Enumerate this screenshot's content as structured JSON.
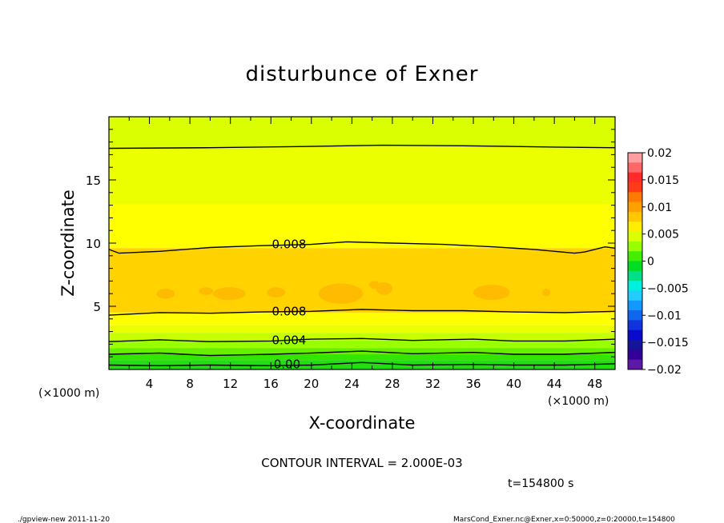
{
  "chart_data": {
    "type": "heatmap",
    "title": "disturbunce of Exner",
    "xlabel": "X-coordinate",
    "ylabel": "Z-coordinate",
    "x_unit": "(×1000 m)",
    "z_unit": "(×1000 m)",
    "xlim": [
      0,
      50
    ],
    "ylim": [
      0,
      20
    ],
    "x_ticks": [
      4,
      8,
      12,
      16,
      20,
      24,
      28,
      32,
      36,
      40,
      44,
      48
    ],
    "y_ticks": [
      5,
      10,
      15
    ],
    "contour_interval_text": "CONTOUR INTERVAL = 2.000E-03",
    "contour_labels": [
      {
        "text": "0.008",
        "x": 17.8,
        "z": 9.9
      },
      {
        "text": "0.008",
        "x": 17.8,
        "z": 4.6
      },
      {
        "text": "0.004",
        "x": 17.8,
        "z": 2.3
      },
      {
        "text": "0.00",
        "x": 17.6,
        "z": 0.4
      }
    ],
    "contours": [
      {
        "level": 0.002,
        "points": [
          [
            0,
            0.35
          ],
          [
            5,
            0.3
          ],
          [
            10,
            0.35
          ],
          [
            16,
            0.3
          ],
          [
            20,
            0.35
          ],
          [
            25,
            0.55
          ],
          [
            30,
            0.35
          ],
          [
            36,
            0.4
          ],
          [
            40,
            0.35
          ],
          [
            45,
            0.35
          ],
          [
            50,
            0.45
          ]
        ]
      },
      {
        "level": 0.004,
        "points": [
          [
            0,
            1.2
          ],
          [
            5,
            1.3
          ],
          [
            10,
            1.1
          ],
          [
            16,
            1.2
          ],
          [
            20,
            1.3
          ],
          [
            25,
            1.45
          ],
          [
            30,
            1.25
          ],
          [
            36,
            1.35
          ],
          [
            40,
            1.2
          ],
          [
            45,
            1.2
          ],
          [
            50,
            1.35
          ]
        ]
      },
      {
        "level": 0.006,
        "points": [
          [
            0,
            2.2
          ],
          [
            5,
            2.35
          ],
          [
            10,
            2.2
          ],
          [
            16,
            2.25
          ],
          [
            20,
            2.4
          ],
          [
            25,
            2.45
          ],
          [
            30,
            2.3
          ],
          [
            36,
            2.4
          ],
          [
            40,
            2.25
          ],
          [
            45,
            2.25
          ],
          [
            50,
            2.4
          ]
        ]
      },
      {
        "level": 0.008,
        "points": [
          [
            0,
            4.3
          ],
          [
            5,
            4.5
          ],
          [
            10,
            4.45
          ],
          [
            15,
            4.55
          ],
          [
            20,
            4.6
          ],
          [
            25,
            4.75
          ],
          [
            30,
            4.65
          ],
          [
            35,
            4.65
          ],
          [
            40,
            4.55
          ],
          [
            45,
            4.5
          ],
          [
            50,
            4.6
          ]
        ]
      },
      {
        "level": 0.008,
        "points": [
          [
            0,
            9.5
          ],
          [
            1,
            9.2
          ],
          [
            5,
            9.35
          ],
          [
            10,
            9.65
          ],
          [
            15,
            9.8
          ],
          [
            20,
            9.9
          ],
          [
            23.5,
            10.1
          ],
          [
            28,
            10.0
          ],
          [
            33,
            9.9
          ],
          [
            38,
            9.7
          ],
          [
            42,
            9.5
          ],
          [
            46,
            9.2
          ],
          [
            47,
            9.3
          ],
          [
            49,
            9.7
          ],
          [
            50,
            9.6
          ]
        ]
      },
      {
        "level": 0.004,
        "points": [
          [
            0,
            17.5
          ],
          [
            10,
            17.55
          ],
          [
            20,
            17.65
          ],
          [
            27,
            17.75
          ],
          [
            35,
            17.7
          ],
          [
            44,
            17.6
          ],
          [
            50,
            17.55
          ]
        ]
      }
    ],
    "colorbar": {
      "ticks": [
        "0.02",
        "0.015",
        "0.01",
        "0.005",
        "0",
        "−0.005",
        "−0.01",
        "−0.015",
        "−0.02"
      ],
      "colors": [
        "#ff9f9f",
        "#ff6666",
        "#ff2a2a",
        "#ff3a18",
        "#ff7a00",
        "#ffa000",
        "#ffc800",
        "#ffee00",
        "#d9ff00",
        "#99ff00",
        "#44ee00",
        "#00dd22",
        "#00e088",
        "#00f0e0",
        "#22ccff",
        "#1199ff",
        "#1166ee",
        "#1133dd",
        "#0a0acc",
        "#141499",
        "#330099",
        "#5e18a8"
      ]
    },
    "bands": [
      {
        "z": [
          17.6,
          20
        ],
        "color": "#d9ff00"
      },
      {
        "z": [
          13.1,
          17.6
        ],
        "color": "#ecff00"
      },
      {
        "z": [
          9.6,
          13.1
        ],
        "color": "#ffff00"
      },
      {
        "z": [
          4.5,
          9.6
        ],
        "color": "#ffd200"
      },
      {
        "z": [
          3.5,
          4.5
        ],
        "color": "#ffff00"
      },
      {
        "z": [
          2.9,
          3.5
        ],
        "color": "#ecff00"
      },
      {
        "z": [
          2.3,
          2.9
        ],
        "color": "#c6ff00"
      },
      {
        "z": [
          1.7,
          2.3
        ],
        "color": "#99ff00"
      },
      {
        "z": [
          1.2,
          1.7
        ],
        "color": "#66f000"
      },
      {
        "z": [
          0.75,
          1.2
        ],
        "color": "#33e600"
      },
      {
        "z": [
          0,
          0.75
        ],
        "color": "#22dd11"
      }
    ],
    "blobs": [
      {
        "x": 5.6,
        "z": 6.0,
        "rx": 0.9,
        "rz": 0.4
      },
      {
        "x": 11.9,
        "z": 6.0,
        "rx": 1.6,
        "rz": 0.5
      },
      {
        "x": 9.6,
        "z": 6.2,
        "rx": 0.7,
        "rz": 0.3
      },
      {
        "x": 16.5,
        "z": 6.1,
        "rx": 0.9,
        "rz": 0.4
      },
      {
        "x": 22.9,
        "z": 6.0,
        "rx": 2.2,
        "rz": 0.8
      },
      {
        "x": 27.2,
        "z": 6.4,
        "rx": 0.8,
        "rz": 0.5
      },
      {
        "x": 37.8,
        "z": 6.1,
        "rx": 1.8,
        "rz": 0.6
      },
      {
        "x": 43.2,
        "z": 6.1,
        "rx": 0.4,
        "rz": 0.3
      },
      {
        "x": 26.2,
        "z": 6.7,
        "rx": 0.5,
        "rz": 0.3
      }
    ]
  },
  "annotations": {
    "time": "t=154800 s",
    "footer_left": "./gpview-new   2011-11-20",
    "footer_right": "MarsCond_Exner.nc@Exner,x=0:50000,z=0:20000,t=154800"
  }
}
